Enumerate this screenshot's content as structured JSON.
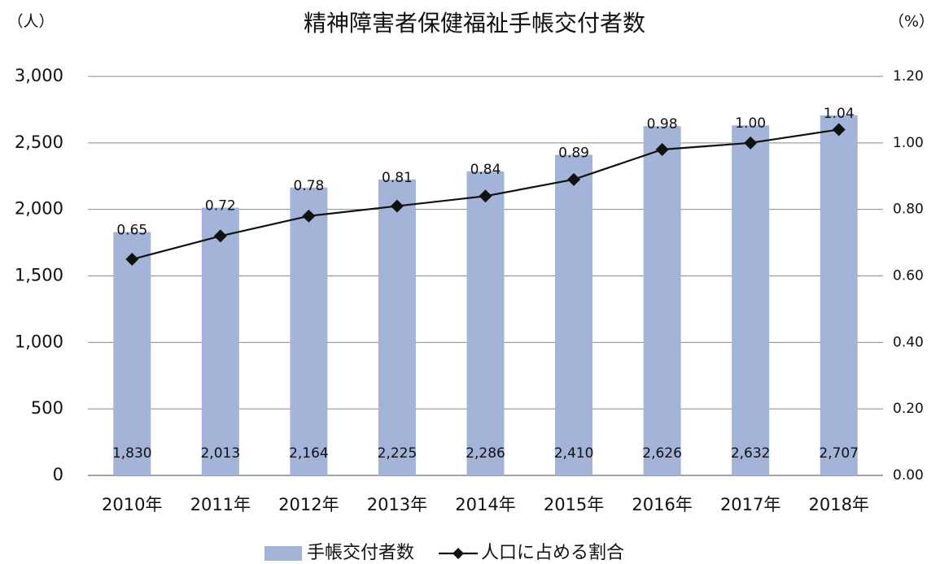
{
  "chart_data": {
    "type": "combo",
    "title": "精神障害者保健福祉手帳交付者数",
    "y_label": "（人）",
    "y2_label": "（%）",
    "categories": [
      "2010年",
      "2011年",
      "2012年",
      "2013年",
      "2014年",
      "2015年",
      "2016年",
      "2017年",
      "2018年"
    ],
    "series": [
      {
        "name": "手帳交付者数",
        "type": "bar",
        "color": "#a3b4d8",
        "values": [
          1830,
          2013,
          2164,
          2225,
          2286,
          2410,
          2626,
          2632,
          2707
        ],
        "value_labels": [
          "1,830",
          "2,013",
          "2,164",
          "2,225",
          "2,286",
          "2,410",
          "2,626",
          "2,632",
          "2,707"
        ]
      },
      {
        "name": "人口に占める割合",
        "type": "line",
        "axis": "y2",
        "color": "#111111",
        "values": [
          0.65,
          0.72,
          0.78,
          0.81,
          0.84,
          0.89,
          0.98,
          1.0,
          1.04
        ],
        "value_labels": [
          "0.65",
          "0.72",
          "0.78",
          "0.81",
          "0.84",
          "0.89",
          "0.98",
          "1.00",
          "1.04"
        ]
      }
    ],
    "ylim": [
      0,
      3000
    ],
    "yticks": [
      0,
      500,
      {
        "value": 1000,
        "label": "1,000"
      },
      {
        "value": 1500,
        "label": "1,500"
      },
      {
        "value": 2000,
        "label": "2,000"
      },
      {
        "value": 2500,
        "label": "2,500"
      },
      {
        "value": 3000,
        "label": "3,000"
      }
    ],
    "y2lim": [
      0,
      1.2
    ],
    "y2ticks": [
      {
        "value": 0,
        "label": "0.00"
      },
      {
        "value": 0.2,
        "label": "0.20"
      },
      {
        "value": 0.4,
        "label": "0.40"
      },
      {
        "value": 0.6,
        "label": "0.60"
      },
      {
        "value": 0.8,
        "label": "0.80"
      },
      {
        "value": 1.0,
        "label": "1.00"
      },
      {
        "value": 1.2,
        "label": "1.20"
      }
    ],
    "grid": true
  }
}
